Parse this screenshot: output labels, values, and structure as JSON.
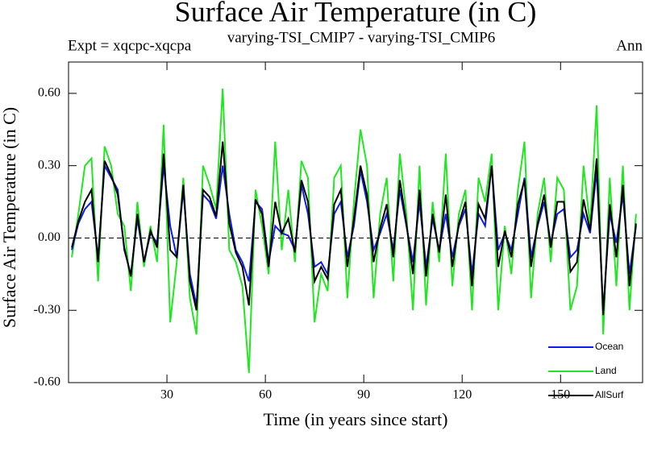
{
  "chart_data": {
    "type": "line",
    "title": "Surface Air Temperature (in C)",
    "subtitle_left": "Expt = xqcpc-xqcpa",
    "subtitle_center": "varying-TSI_CMIP7 - varying-TSI_CMIP6",
    "subtitle_right": "Ann",
    "x_label": "Time (in years since start)",
    "y_label": "Surface Air Temperature (in C)",
    "xlim": [
      0,
      175
    ],
    "ylim": [
      -0.6,
      0.73
    ],
    "xticks": [
      30,
      60,
      90,
      120,
      150
    ],
    "yticks": [
      {
        "value": -0.6,
        "label": "-0.60"
      },
      {
        "value": -0.3,
        "label": "-0.30"
      },
      {
        "value": 0,
        "label": "0.00"
      },
      {
        "value": 0.3,
        "label": "0.30"
      },
      {
        "value": 0.6,
        "label": "0.60"
      }
    ],
    "reference_line": 0,
    "x": [
      1,
      3,
      5,
      7,
      9,
      11,
      13,
      15,
      17,
      19,
      21,
      23,
      25,
      27,
      29,
      31,
      33,
      35,
      37,
      39,
      41,
      43,
      45,
      47,
      49,
      51,
      53,
      55,
      57,
      59,
      61,
      63,
      65,
      67,
      69,
      71,
      73,
      75,
      77,
      79,
      81,
      83,
      85,
      87,
      89,
      91,
      93,
      95,
      97,
      99,
      101,
      103,
      105,
      107,
      109,
      111,
      113,
      115,
      117,
      119,
      121,
      123,
      125,
      127,
      129,
      131,
      133,
      135,
      137,
      139,
      141,
      143,
      145,
      147,
      149,
      151,
      153,
      155,
      157,
      159,
      161,
      163,
      165,
      167,
      169,
      171,
      173
    ],
    "series": [
      {
        "name": "Land",
        "color": "#22e622",
        "values": [
          -0.08,
          0.1,
          0.3,
          0.33,
          -0.18,
          0.38,
          0.3,
          0.1,
          0.05,
          -0.22,
          0.15,
          -0.12,
          0.05,
          -0.1,
          0.47,
          -0.35,
          -0.1,
          0.25,
          -0.25,
          -0.4,
          0.3,
          0.22,
          0.12,
          0.62,
          -0.05,
          -0.1,
          -0.2,
          -0.56,
          0.2,
          0.05,
          -0.15,
          0.4,
          -0.05,
          0.2,
          -0.1,
          0.32,
          0.25,
          -0.35,
          -0.15,
          -0.22,
          0.25,
          0.3,
          -0.25,
          0.15,
          0.45,
          0.3,
          -0.25,
          0.1,
          0.25,
          -0.18,
          0.35,
          0.1,
          -0.3,
          0.3,
          -0.28,
          0.15,
          -0.1,
          0.35,
          -0.2,
          0.1,
          0.2,
          -0.3,
          0.25,
          0.15,
          0.35,
          -0.3,
          0.05,
          -0.15,
          0.2,
          0.4,
          -0.25,
          0.1,
          0.25,
          -0.1,
          0.25,
          0.2,
          -0.3,
          -0.2,
          0.3,
          0.05,
          0.55,
          -0.4,
          0.25,
          -0.2,
          0.3,
          -0.3,
          0.1
        ]
      },
      {
        "name": "Ocean",
        "color": "#0a1ee6",
        "values": [
          -0.05,
          0.06,
          0.12,
          0.15,
          -0.08,
          0.3,
          0.25,
          0.2,
          -0.05,
          -0.15,
          0.08,
          -0.1,
          0.02,
          -0.02,
          0.3,
          0.05,
          -0.08,
          0.2,
          -0.15,
          -0.28,
          0.18,
          0.15,
          0.08,
          0.3,
          0.1,
          -0.05,
          -0.1,
          -0.18,
          0.15,
          0.12,
          -0.1,
          0.05,
          0.02,
          0.01,
          -0.05,
          0.22,
          0.1,
          -0.12,
          -0.1,
          -0.15,
          0.1,
          0.15,
          -0.08,
          0.05,
          0.28,
          0.15,
          -0.05,
          0.02,
          0.1,
          -0.05,
          0.2,
          0.05,
          -0.1,
          0.15,
          -0.12,
          0.08,
          -0.05,
          0.1,
          -0.08,
          0.05,
          0.12,
          -0.15,
          0.1,
          0.05,
          0.3,
          -0.05,
          0.02,
          -0.05,
          0.1,
          0.25,
          -0.08,
          0.05,
          0.15,
          -0.02,
          0.1,
          0.12,
          -0.08,
          -0.05,
          0.1,
          0.02,
          0.28,
          -0.3,
          0.1,
          -0.02,
          0.18,
          -0.15,
          0.05
        ]
      },
      {
        "name": "AllSurf",
        "color": "#000000",
        "values": [
          -0.04,
          0.07,
          0.15,
          0.2,
          -0.1,
          0.32,
          0.26,
          0.18,
          -0.04,
          -0.16,
          0.1,
          -0.1,
          0.03,
          -0.04,
          0.35,
          -0.05,
          -0.08,
          0.22,
          -0.18,
          -0.3,
          0.2,
          0.17,
          0.09,
          0.4,
          0.06,
          -0.06,
          -0.12,
          -0.28,
          0.16,
          0.1,
          -0.12,
          0.15,
          0.02,
          0.08,
          -0.06,
          0.24,
          0.15,
          -0.18,
          -0.12,
          -0.17,
          0.14,
          0.2,
          -0.12,
          0.08,
          0.3,
          0.18,
          -0.1,
          0.04,
          0.14,
          -0.08,
          0.24,
          0.06,
          -0.15,
          0.2,
          -0.16,
          0.1,
          -0.06,
          0.18,
          -0.12,
          0.06,
          0.15,
          -0.2,
          0.14,
          0.08,
          0.3,
          -0.12,
          0.03,
          -0.08,
          0.14,
          0.24,
          -0.12,
          0.06,
          0.18,
          -0.04,
          0.15,
          0.15,
          -0.14,
          -0.1,
          0.16,
          0.03,
          0.33,
          -0.32,
          0.14,
          -0.08,
          0.22,
          -0.2,
          0.06
        ]
      }
    ]
  }
}
